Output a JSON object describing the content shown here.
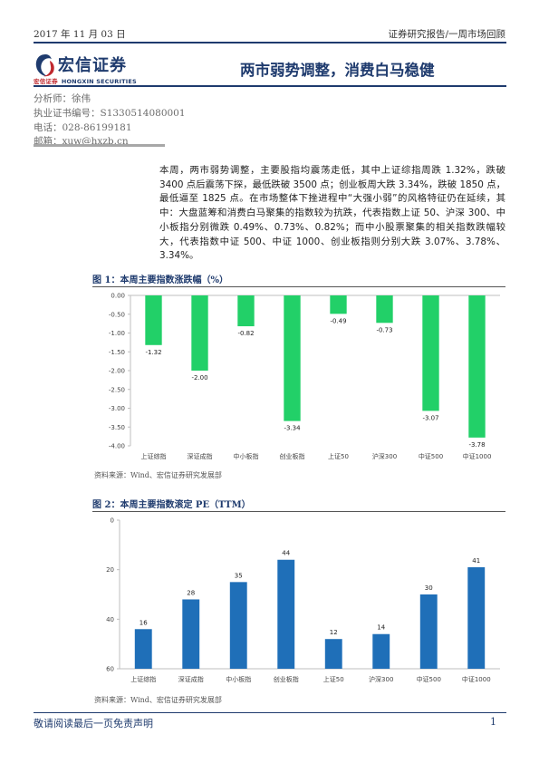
{
  "header": {
    "date": "2017 年 11 月 03 日",
    "report_type": "证券研究报告/一周市场回顾"
  },
  "logo": {
    "name_cn": "宏信证券",
    "name_en_small": "宏信证券",
    "name_en": "HONGXIN SECURITIES",
    "colors": {
      "blue": "#1f3b6e",
      "red": "#c0282e"
    }
  },
  "title": "两市弱势调整，消费白马稳健",
  "author": {
    "analyst": "分析师：徐伟",
    "license": "执业证书编号：S1330514080001",
    "phone": "电话：028-86199181",
    "email": "邮箱：xuw@hxzb.cn"
  },
  "summary": "本周，两市弱势调整，主要股指均震荡走低，其中上证综指周跌 1.32%，跌破 3400 点后震荡下探，最低跌破 3500 点；创业板周大跌 3.34%，跌破 1850 点，最低逼至 1825 点。在市场整体下挫进程中“大强小弱”的风格特征仍在延续，其中：大盘蓝筹和消费白马聚集的指数较为抗跌，代表指数上证 50、沪深 300、中小板指分别微跌 0.49%、0.73%、0.82%；而中小股票聚集的相关指数跌幅较大，代表指数中证 500、中证 1000、创业板指则分别大跌 3.07%、3.78%、3.34%。",
  "figure1": {
    "title": "图 1：本周主要指数涨跌幅（%）",
    "source": "资料来源：Wind、宏信证券研究发展部"
  },
  "figure2": {
    "title": "图 2：本周主要指数滚定 PE（TTM）",
    "source": "资料来源：Wind、宏信证券研究发展部"
  },
  "chart_data": [
    {
      "type": "bar",
      "title": "本周主要指数涨跌幅（%）",
      "categories": [
        "上证综指",
        "深证成指",
        "中小板指",
        "创业板指",
        "上证50",
        "沪深300",
        "中证500",
        "中证1000"
      ],
      "values": [
        -1.32,
        -2.0,
        -0.82,
        -3.34,
        -0.49,
        -0.73,
        -3.07,
        -3.78
      ],
      "value_labels": [
        "-1.32",
        "-2.00",
        "-0.82",
        "-3.34",
        "-0.49",
        "-0.73",
        "-3.07",
        "-3.78"
      ],
      "ylim": [
        -4.0,
        0.0
      ],
      "yticks": [
        "0.00",
        "-0.50",
        "-1.00",
        "-1.50",
        "-2.00",
        "-2.50",
        "-3.00",
        "-3.50",
        "-4.00"
      ],
      "grid": false,
      "bar_color": "#22d068"
    },
    {
      "type": "bar",
      "title": "本周主要指数滚定 PE（TTM）",
      "categories": [
        "上证综指",
        "深证成指",
        "中小板指",
        "创业板指",
        "上证50",
        "沪深300",
        "中证500",
        "中证1000"
      ],
      "values": [
        16,
        28,
        35,
        44,
        12,
        14,
        30,
        41
      ],
      "value_labels": [
        "16",
        "28",
        "35",
        "44",
        "12",
        "14",
        "30",
        "41"
      ],
      "ylim": [
        0,
        60
      ],
      "yticks": [
        "0",
        "20",
        "40",
        "60"
      ],
      "grid": false,
      "bar_color": "#1f6fb8"
    }
  ],
  "footer": {
    "disclaimer": "敬请阅读最后一页免责声明",
    "page": "1"
  }
}
